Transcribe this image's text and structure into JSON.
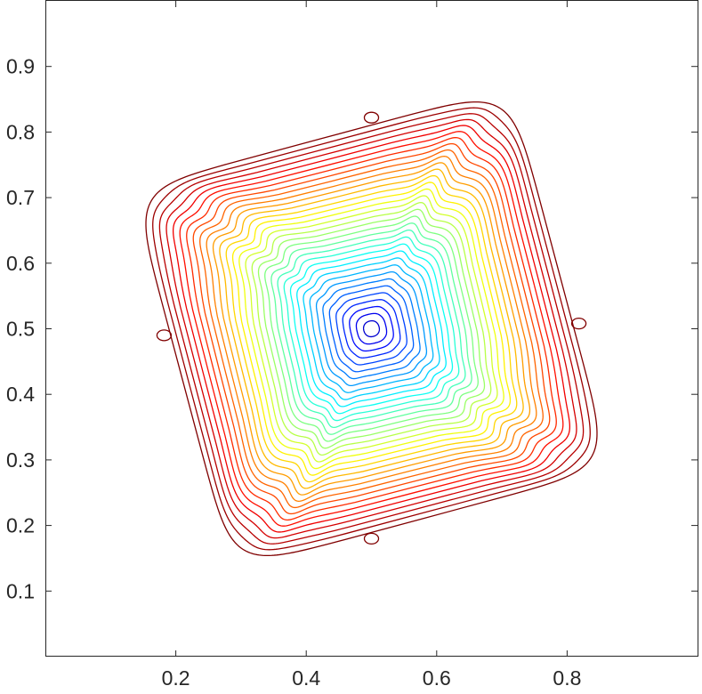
{
  "chart_data": {
    "type": "contour",
    "title": "",
    "xlabel": "",
    "ylabel": "",
    "xlim": [
      0,
      1
    ],
    "ylim": [
      0,
      1
    ],
    "xticks": [
      0.2,
      0.4,
      0.6,
      0.8
    ],
    "xtick_labels": [
      "0.2",
      "0.4",
      "0.6",
      "0.8"
    ],
    "yticks": [
      0.1,
      0.2,
      0.3,
      0.4,
      0.5,
      0.6,
      0.7,
      0.8,
      0.9
    ],
    "ytick_labels": [
      "0.1",
      "0.2",
      "0.3",
      "0.4",
      "0.5",
      "0.6",
      "0.7",
      "0.8",
      "0.9"
    ],
    "center": [
      0.5,
      0.5
    ],
    "rotation_deg": 15,
    "level_count": 34,
    "outer_half_size": 0.3,
    "inner_half_size": 0.012,
    "colormap": "jet",
    "islands": [
      [
        0.5,
        0.822
      ],
      [
        0.182,
        0.49
      ],
      [
        0.818,
        0.508
      ],
      [
        0.5,
        0.18
      ]
    ],
    "grid": false,
    "legend": "none"
  }
}
